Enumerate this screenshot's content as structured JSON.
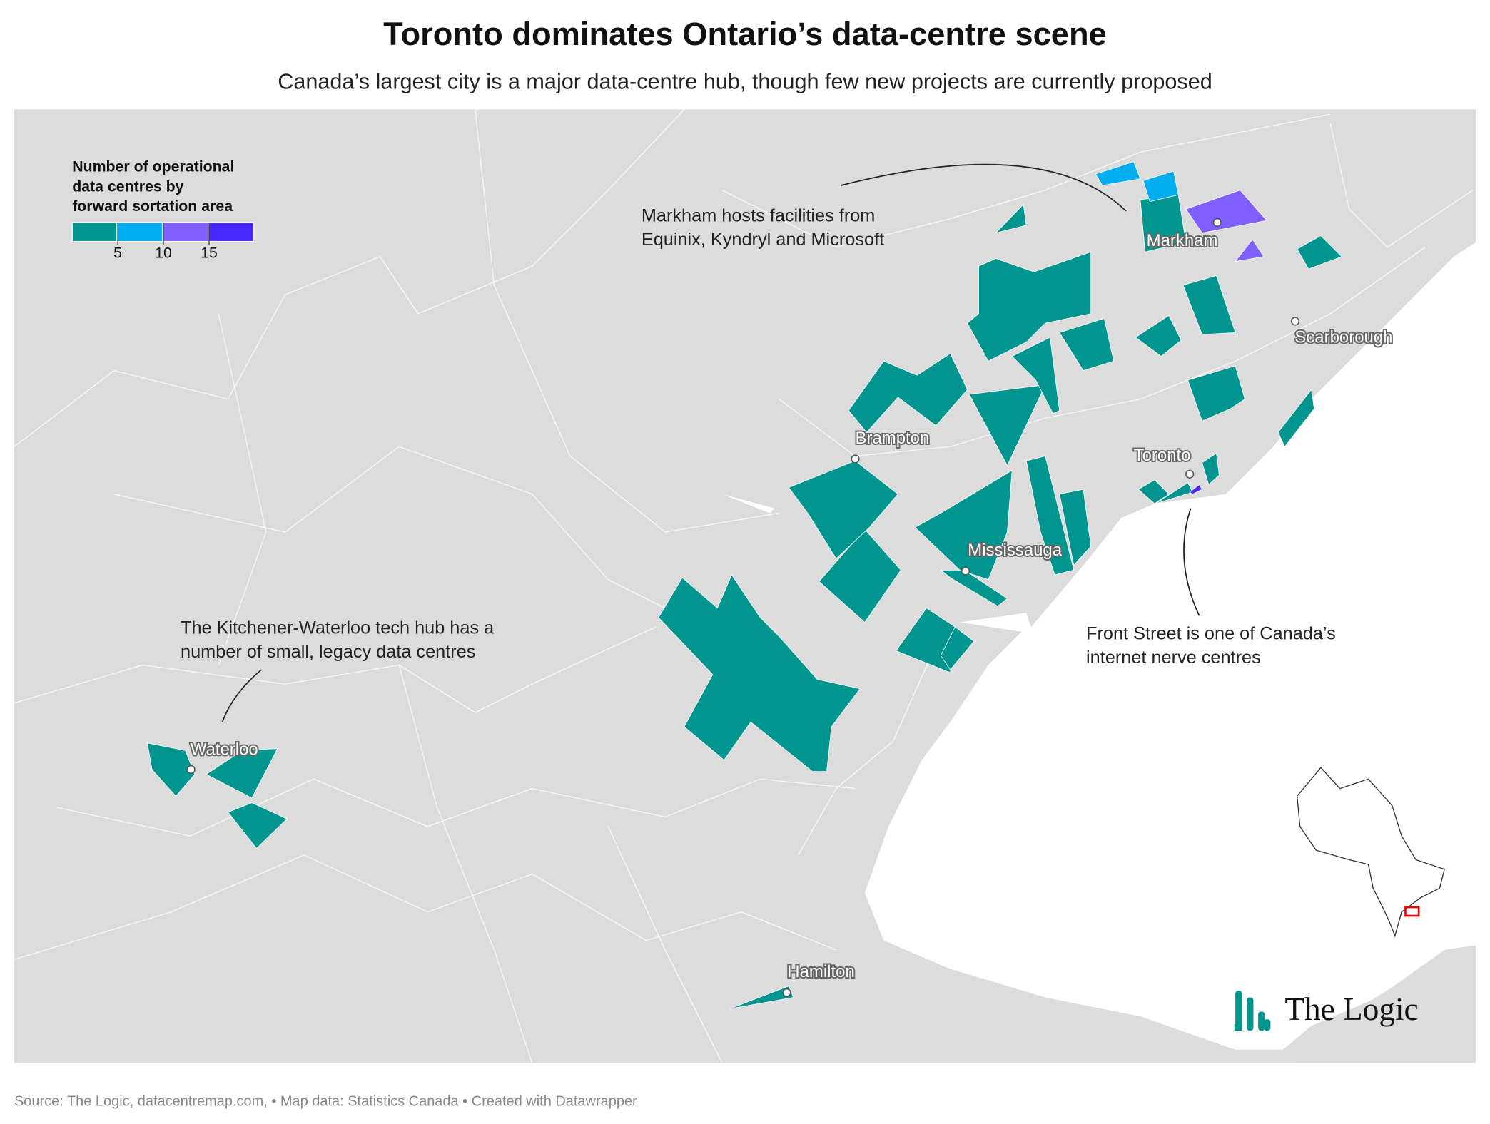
{
  "header": {
    "title": "Toronto dominates Ontario’s data-centre scene",
    "subtitle": "Canada’s largest city is a major data-centre hub, though few new projects are currently proposed"
  },
  "legend": {
    "title": [
      "Number of operational",
      "data centres by",
      "forward sortation area"
    ],
    "colors": [
      "#00968f",
      "#00aef0",
      "#7f5fff",
      "#4628ff"
    ],
    "range": [
      0,
      20
    ],
    "ticks": [
      5,
      10,
      15
    ]
  },
  "cities": [
    "Markham",
    "Scarborough",
    "Brampton",
    "Toronto",
    "Mississauga",
    "Waterloo",
    "Hamilton"
  ],
  "annotations": [
    [
      "Markham hosts facilities from",
      "Equinix, Kyndryl and Microsoft"
    ],
    [
      "The Kitchener-Waterloo tech hub has a",
      "number of small, legacy data centres"
    ],
    [
      "Front Street is one of Canada’s",
      "internet nerve centres"
    ]
  ],
  "logo": "The Logic",
  "footer": "Source: The Logic, datacentremap.com, • Map data: Statistics Canada • Created with Datawrapper"
}
